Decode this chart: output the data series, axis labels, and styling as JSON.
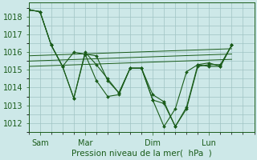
{
  "background_color": "#cde8e8",
  "grid_color": "#a0c4c4",
  "line_color": "#1a5c1a",
  "xlabel": "Pression niveau de la mer(  hPa  )",
  "ylim": [
    1011.5,
    1018.8
  ],
  "yticks": [
    1012,
    1013,
    1014,
    1015,
    1016,
    1017,
    1018
  ],
  "xlim": [
    0,
    20
  ],
  "font_color": "#1a5c1a",
  "font_size": 7,
  "xlabel_fontsize": 7.5,
  "xtick_positions": [
    1,
    5,
    11,
    16
  ],
  "xtick_labels": [
    "Sam",
    "Mar",
    "Dim",
    "Lun"
  ],
  "s1_x": [
    0,
    1,
    2,
    3,
    4,
    5,
    6,
    7,
    8,
    9,
    10,
    11,
    12,
    13,
    14,
    15,
    16,
    17,
    18
  ],
  "s1_y": [
    1018.4,
    1018.3,
    1016.4,
    1015.2,
    1016.0,
    1015.9,
    1014.4,
    1013.5,
    1013.6,
    1015.1,
    1015.1,
    1013.6,
    1013.2,
    1011.8,
    1012.9,
    1015.3,
    1015.4,
    1015.2,
    1016.4
  ],
  "s2_x": [
    0,
    1,
    2,
    3,
    4,
    5,
    6,
    7,
    8,
    9,
    10,
    11,
    12,
    13,
    14,
    15,
    16,
    17,
    18
  ],
  "s2_y": [
    1018.4,
    1018.3,
    1016.4,
    1015.2,
    1013.4,
    1016.0,
    1015.3,
    1014.5,
    1013.7,
    1015.1,
    1015.1,
    1013.3,
    1013.1,
    1011.8,
    1012.8,
    1015.2,
    1015.3,
    1015.3,
    1016.4
  ],
  "s3_x": [
    0,
    1,
    2,
    3,
    4,
    5,
    6,
    7,
    8,
    9,
    10,
    11,
    12,
    13,
    14,
    15,
    16,
    17,
    18
  ],
  "s3_y": [
    1018.4,
    1018.3,
    1016.4,
    1015.2,
    1013.4,
    1015.9,
    1015.8,
    1014.4,
    1013.7,
    1015.1,
    1015.1,
    1013.3,
    1011.8,
    1012.8,
    1014.9,
    1015.3,
    1015.2,
    1015.2,
    1016.4
  ],
  "trend1_x": [
    0,
    18
  ],
  "trend1_y": [
    1015.8,
    1016.2
  ],
  "trend2_x": [
    0,
    18
  ],
  "trend2_y": [
    1015.5,
    1015.9
  ],
  "trend3_x": [
    0,
    18
  ],
  "trend3_y": [
    1015.2,
    1015.6
  ]
}
